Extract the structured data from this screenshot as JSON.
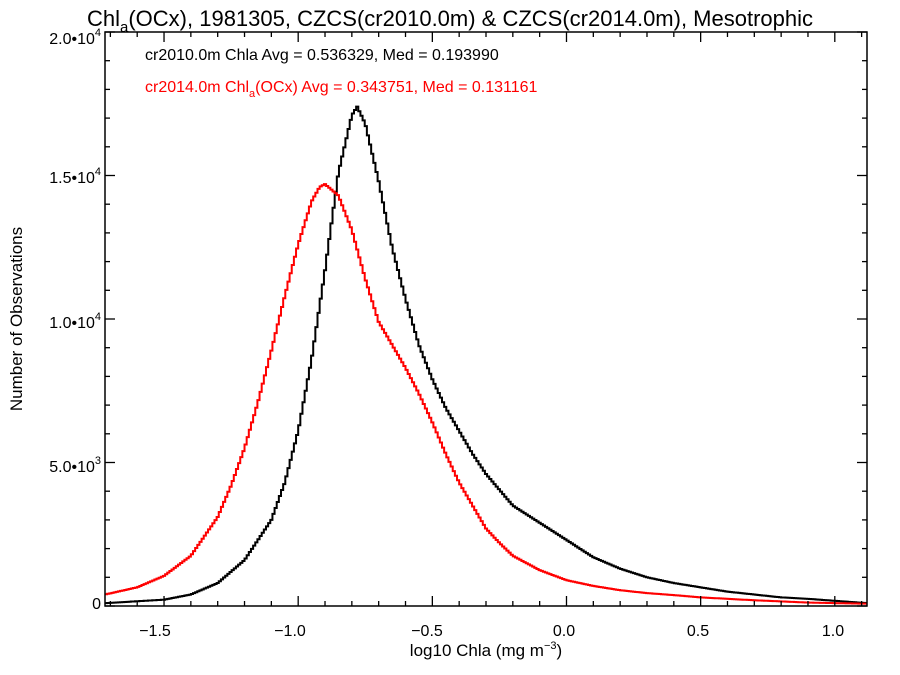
{
  "title": {
    "pre": "Chl",
    "sub": "a",
    "post": "(OCx), 1981305, CZCS(cr2010.0m) & CZCS(cr2014.0m), Mesotrophic"
  },
  "xlabel": {
    "pre": "log10 Chla (mg m",
    "sup": "−3",
    "post": ")"
  },
  "ylabel": "Number of Observations",
  "yticks": [
    {
      "mant": "0",
      "exp": ""
    },
    {
      "mant": "5.0•10",
      "exp": "3"
    },
    {
      "mant": "1.0•10",
      "exp": "4"
    },
    {
      "mant": "1.5•10",
      "exp": "4"
    },
    {
      "mant": "2.0•10",
      "exp": "4"
    }
  ],
  "xticks": [
    "−1.5",
    "−1.0",
    "−0.5",
    "0.0",
    "0.5",
    "1.0"
  ],
  "legend": [
    {
      "pre": "cr2010.0m Chla Avg = 0.536329, Med = 0.193990",
      "sub": "",
      "post": "",
      "color": "#000000"
    },
    {
      "pre": "cr2014.0m Chl",
      "sub": "a",
      "post": "(OCx) Avg = 0.343751, Med = 0.131161",
      "color": "#ff0000"
    }
  ],
  "chart_data": {
    "type": "line",
    "step": true,
    "xlim": [
      -1.72,
      1.12
    ],
    "ylim": [
      0,
      20000
    ],
    "xtick_values": [
      -1.5,
      -1.0,
      -0.5,
      0.0,
      0.5,
      1.0
    ],
    "ytick_values": [
      0,
      5000,
      10000,
      15000,
      20000
    ],
    "grid": false,
    "legend_position": "top-left",
    "series": [
      {
        "name": "cr2010.0m Chla",
        "color": "#000000",
        "x": [
          -1.72,
          -1.5,
          -1.4,
          -1.3,
          -1.2,
          -1.1,
          -1.05,
          -1.0,
          -0.95,
          -0.9,
          -0.85,
          -0.8,
          -0.78,
          -0.75,
          -0.7,
          -0.65,
          -0.6,
          -0.55,
          -0.5,
          -0.45,
          -0.4,
          -0.35,
          -0.3,
          -0.2,
          -0.1,
          0.0,
          0.1,
          0.2,
          0.3,
          0.4,
          0.5,
          0.6,
          0.7,
          0.8,
          0.9,
          1.0,
          1.12
        ],
        "y": [
          100,
          220,
          400,
          800,
          1600,
          3000,
          4300,
          6100,
          8600,
          11700,
          15100,
          17100,
          17400,
          16800,
          14800,
          12500,
          10700,
          9100,
          7900,
          6900,
          6100,
          5300,
          4600,
          3500,
          2900,
          2300,
          1700,
          1300,
          1000,
          800,
          650,
          500,
          400,
          300,
          250,
          180,
          100
        ]
      },
      {
        "name": "cr2014.0m Chla(OCx)",
        "color": "#ff0000",
        "x": [
          -1.72,
          -1.6,
          -1.5,
          -1.4,
          -1.3,
          -1.25,
          -1.2,
          -1.15,
          -1.1,
          -1.05,
          -1.0,
          -0.95,
          -0.92,
          -0.9,
          -0.85,
          -0.8,
          -0.75,
          -0.7,
          -0.65,
          -0.6,
          -0.55,
          -0.5,
          -0.45,
          -0.4,
          -0.35,
          -0.3,
          -0.25,
          -0.2,
          -0.1,
          0.0,
          0.1,
          0.2,
          0.3,
          0.4,
          0.5,
          0.6,
          0.7,
          0.8,
          0.9,
          1.0,
          1.12
        ],
        "y": [
          400,
          650,
          1050,
          1750,
          3100,
          4200,
          5500,
          7100,
          8900,
          10800,
          12600,
          14100,
          14600,
          14700,
          14300,
          13100,
          11400,
          9900,
          9100,
          8300,
          7400,
          6400,
          5300,
          4300,
          3500,
          2700,
          2200,
          1750,
          1250,
          900,
          700,
          550,
          450,
          380,
          300,
          250,
          200,
          160,
          120,
          100,
          80
        ]
      }
    ]
  }
}
